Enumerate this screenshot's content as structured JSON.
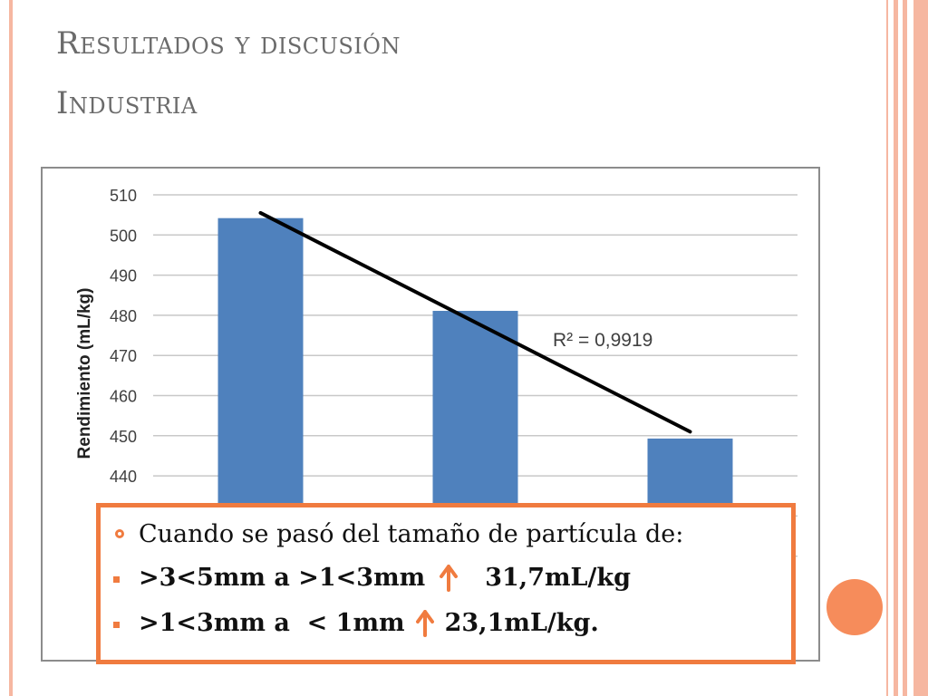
{
  "slide": {
    "title": "Resultados y discusión",
    "subtitle": "Industria"
  },
  "colors": {
    "bar": "#4f81bd",
    "trendline": "#000000",
    "accent": "#f07b3f",
    "frame": "#f6b7a1"
  },
  "chart_data": {
    "type": "bar",
    "categories": [
      "",
      "",
      ""
    ],
    "values": [
      504.2,
      481.1,
      449.3
    ],
    "ylabel": "Rendimiento (mL/kg)",
    "ylim": [
      440,
      510
    ],
    "yticks": [
      440,
      450,
      460,
      470,
      480,
      490,
      500,
      510
    ],
    "grid": true,
    "trendline": {
      "type": "linear",
      "start": 505.5,
      "end": 451.0,
      "label": "R² = 0,9919"
    }
  },
  "callout": {
    "line1": "Cuando se pasó del tamaño de partícula de:",
    "line2_text": ">3<5mm a >1<3mm",
    "line2_value": "31,7mL/kg",
    "line3_text": ">1<3mm a  < 1mm",
    "line3_value": "23,1mL/kg.",
    "arrow_icon": "arrow-up-icon"
  }
}
